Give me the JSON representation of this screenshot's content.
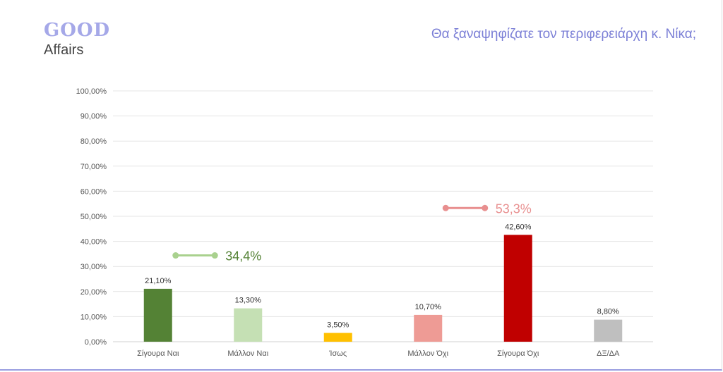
{
  "logo": {
    "line1": "GOOD",
    "line2": "Affairs"
  },
  "chart_data": {
    "type": "bar",
    "title": "Θα ξαναψηφίζατε τον περιφερειάρχη κ. Νίκα;",
    "categories": [
      "Σίγουρα Ναι",
      "Μάλλον Ναι",
      "Ίσως",
      "Μάλλον Όχι",
      "Σίγουρα Όχι",
      "ΔΞ/ΔΑ"
    ],
    "values": [
      21.1,
      13.3,
      3.5,
      10.7,
      42.6,
      8.8
    ],
    "value_labels": [
      "21,10%",
      "13,30%",
      "3,50%",
      "10,70%",
      "42,60%",
      "8,80%"
    ],
    "colors": [
      "#548235",
      "#c5e0b4",
      "#ffc000",
      "#ee9b95",
      "#c00000",
      "#bfbfbf"
    ],
    "ylim": [
      0,
      100
    ],
    "yticks": [
      "0,00%",
      "10,00%",
      "20,00%",
      "30,00%",
      "40,00%",
      "50,00%",
      "60,00%",
      "70,00%",
      "80,00%",
      "90,00%",
      "100,00%"
    ],
    "grid": true,
    "annotations": [
      {
        "text": "34,4%",
        "value": 34.4,
        "span": [
          0,
          1
        ],
        "color": "#a9d18e",
        "text_color": "#548235"
      },
      {
        "text": "53,3%",
        "value": 53.3,
        "span": [
          3,
          4
        ],
        "color": "#e88f8f",
        "text_color": "#e88f8f"
      }
    ]
  }
}
